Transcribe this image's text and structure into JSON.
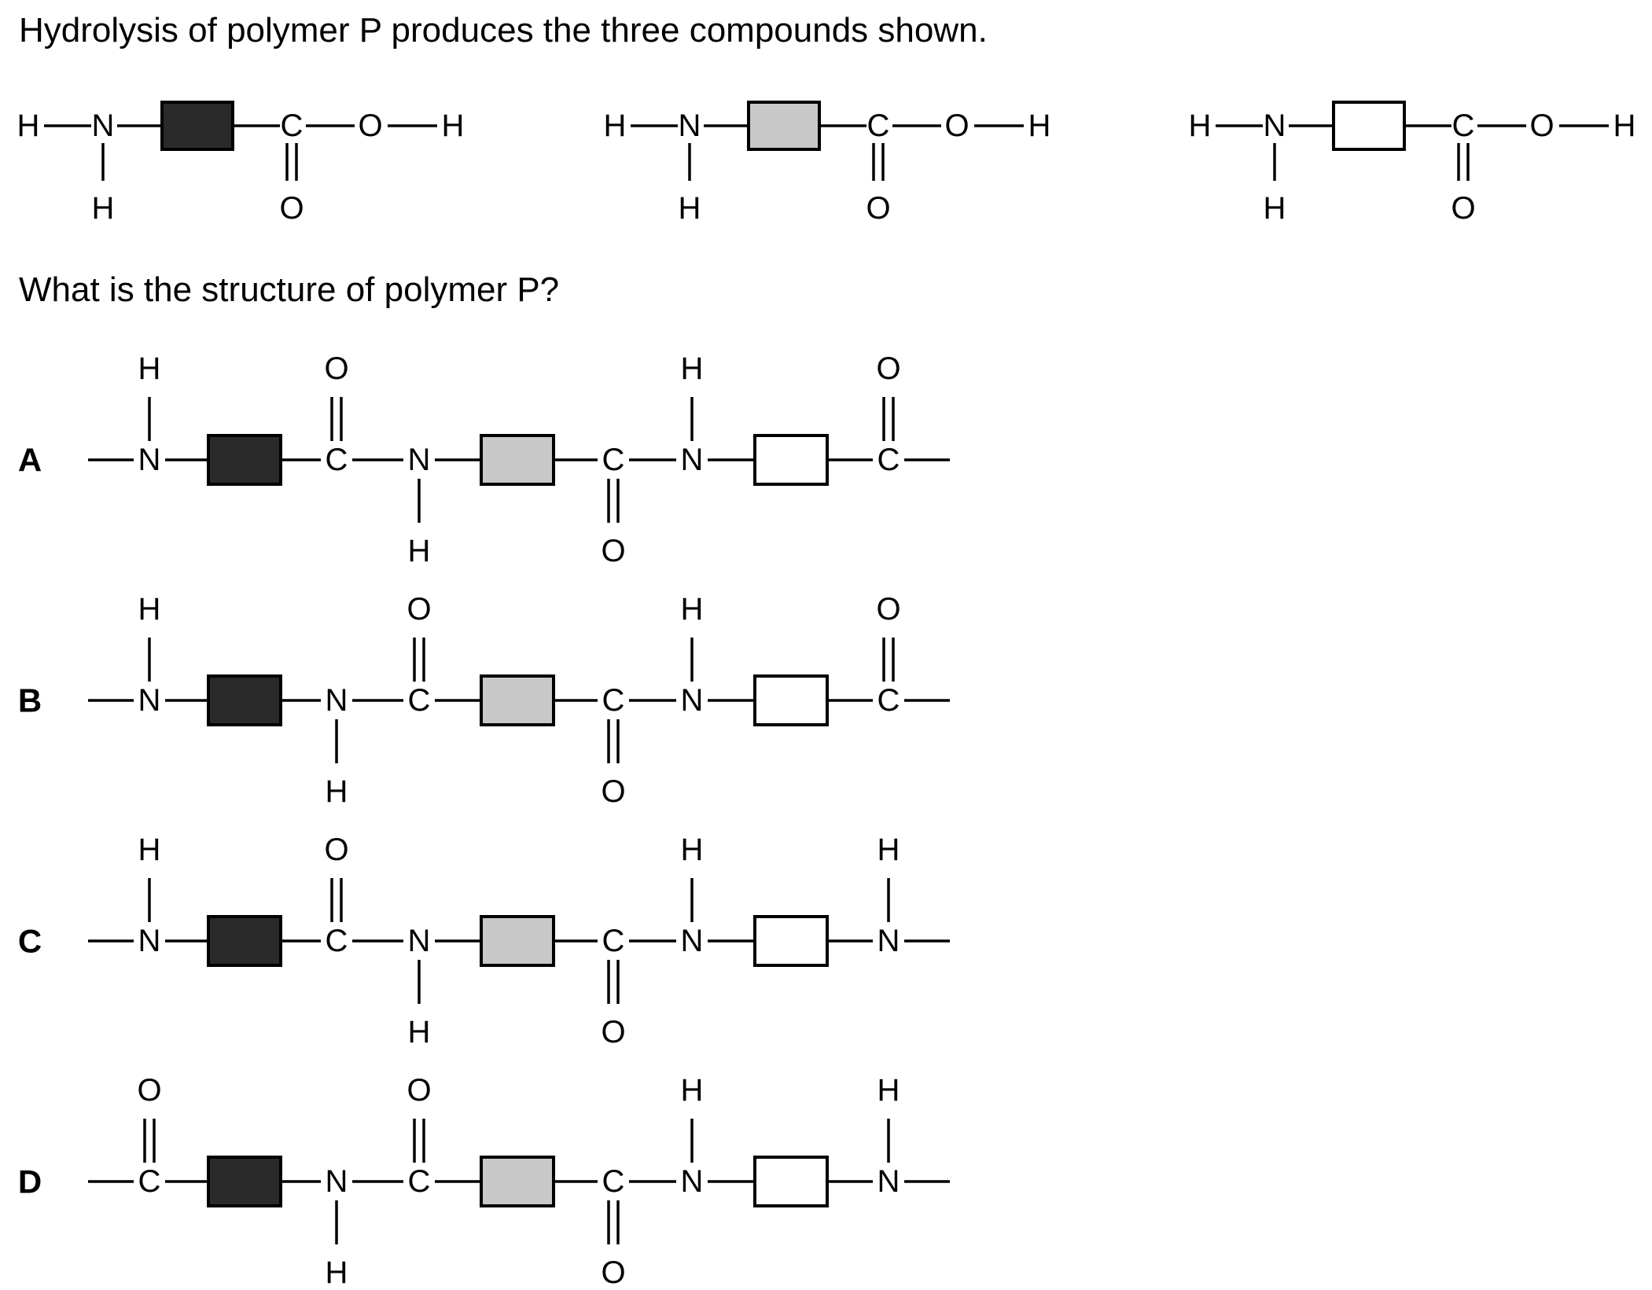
{
  "question": {
    "intro": "Hydrolysis of polymer P produces the three compounds shown.",
    "prompt": "What is the structure of polymer P?"
  },
  "colors": {
    "black_unit": "#2a2a2a",
    "grey_unit": "#c8c8c8",
    "white_unit": "#ffffff",
    "line": "#000000"
  },
  "atoms": {
    "hydrogen": "H",
    "nitrogen": "N",
    "carbon": "C",
    "oxygen": "O"
  },
  "monomers": [
    {
      "name": "black-unit-monomer",
      "unit_fill": "black"
    },
    {
      "name": "grey-unit-monomer",
      "unit_fill": "grey"
    },
    {
      "name": "white-unit-monomer",
      "unit_fill": "white"
    }
  ],
  "options": [
    {
      "letter": "A",
      "sequence": [
        "N-H-up",
        "black",
        "C=O-up",
        "N-H-down",
        "grey",
        "C=O-down",
        "N-H-up",
        "white",
        "C=O-up"
      ]
    },
    {
      "letter": "B",
      "sequence": [
        "N-H-up",
        "black",
        "N-H-down",
        "C=O-up",
        "grey",
        "C=O-down",
        "N-H-up",
        "white",
        "C=O-up"
      ]
    },
    {
      "letter": "C",
      "sequence": [
        "N-H-up",
        "black",
        "C=O-up",
        "N-H-down",
        "grey",
        "C=O-down",
        "N-H-up",
        "white",
        "N-H-up"
      ]
    },
    {
      "letter": "D",
      "sequence": [
        "C=O-up",
        "black",
        "N-H-down",
        "C=O-up",
        "grey",
        "C=O-down",
        "N-H-up",
        "white",
        "N-H-up"
      ]
    }
  ]
}
